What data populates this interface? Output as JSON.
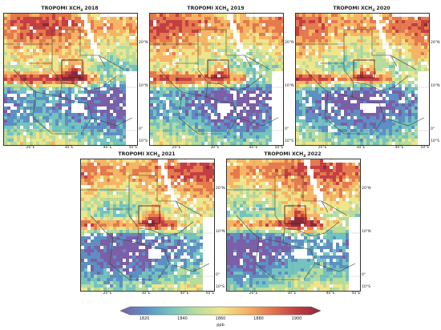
{
  "panels": [
    {
      "id": "p2018",
      "year": "2018",
      "title_prefix": "TROPOMI XCH",
      "title_sub": "4",
      "title_suffix": " 2018",
      "variant": 0
    },
    {
      "id": "p2019",
      "year": "2019",
      "title_prefix": "TROPOMI XCH",
      "title_sub": "4",
      "title_suffix": " 2019",
      "variant": 1
    },
    {
      "id": "p2020",
      "year": "2020",
      "title_prefix": "TROPOMI XCH",
      "title_sub": "4",
      "title_suffix": " 2020",
      "variant": 2
    },
    {
      "id": "p2021",
      "year": "2021",
      "title_prefix": "TROPOMI XCH",
      "title_sub": "4",
      "title_suffix": " 2021",
      "variant": 3
    },
    {
      "id": "p2022",
      "year": "2022",
      "title_prefix": "TROPOMI XCH",
      "title_sub": "4",
      "title_suffix": " 2022",
      "variant": 4
    }
  ],
  "lon_labels": [
    "20°E",
    "30°E",
    "40°E",
    "50°E"
  ],
  "lat_labels": [
    "20°N",
    "10°N",
    "0°",
    "10°S"
  ],
  "colorbar": {
    "ticks": [
      "1820",
      "1840",
      "1860",
      "1880",
      "1900"
    ],
    "unit": "ppb",
    "colors": [
      "#7b5fa8",
      "#5e8fc4",
      "#74c3c0",
      "#b6dc9e",
      "#efe58c",
      "#f6b565",
      "#e47a4d",
      "#c43f42",
      "#8c2a3c"
    ]
  },
  "map_colors": {
    "water": "#ffffff",
    "border": "#3c4636",
    "grid": "#556655",
    "study_box": "#5a1a1a"
  }
}
